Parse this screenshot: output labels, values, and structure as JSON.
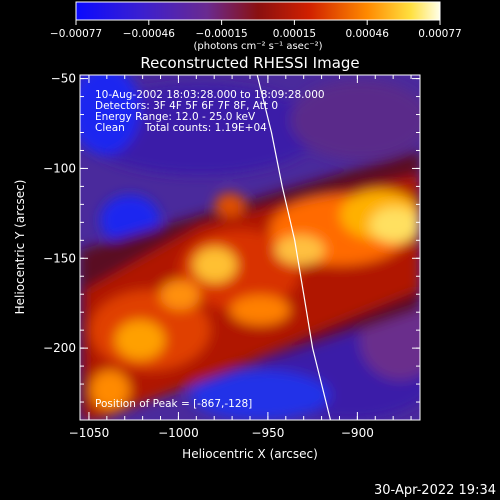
{
  "colorbar": {
    "ticks": [
      "-0.00077",
      "-0.00046",
      "-0.00015",
      "0.00015",
      "0.00046",
      "0.00077"
    ],
    "units": "(photons cm⁻² s⁻¹ asec⁻²)"
  },
  "title": "Reconstructed RHESSI Image",
  "annotations": [
    "10-Aug-2002 18:03:28.000 to 18:09:28.000",
    "Detectors: 3F 4F 5F 6F 7F 8F, Att 0",
    "Energy Range: 12.0 - 25.0 keV",
    "Clean      Total counts: 1.19E+04"
  ],
  "peak_label": "Position of Peak = [-867,-128]",
  "timestamp": "30-Apr-2022 19:34",
  "chart_data": {
    "type": "heatmap",
    "title": "Reconstructed RHESSI Image",
    "xlabel": "Heliocentric X (arcsec)",
    "ylabel": "Heliocentric Y (arcsec)",
    "xlim": [
      -1055,
      -865
    ],
    "ylim": [
      -240,
      -48
    ],
    "xticks": [
      -1050,
      -1000,
      -950,
      -900
    ],
    "yticks": [
      -50,
      -100,
      -150,
      -200
    ],
    "colorbar_range": [
      -0.00077,
      0.00077
    ],
    "colormap": "blue-purple-red-yellow-white",
    "peak_position": [
      -867,
      -128
    ],
    "limb_curve": [
      [
        -956,
        -48
      ],
      [
        -948,
        -80
      ],
      [
        -942,
        -110
      ],
      [
        -935,
        -140
      ],
      [
        -930,
        -170
      ],
      [
        -925,
        -200
      ],
      [
        -915,
        -240
      ]
    ]
  }
}
